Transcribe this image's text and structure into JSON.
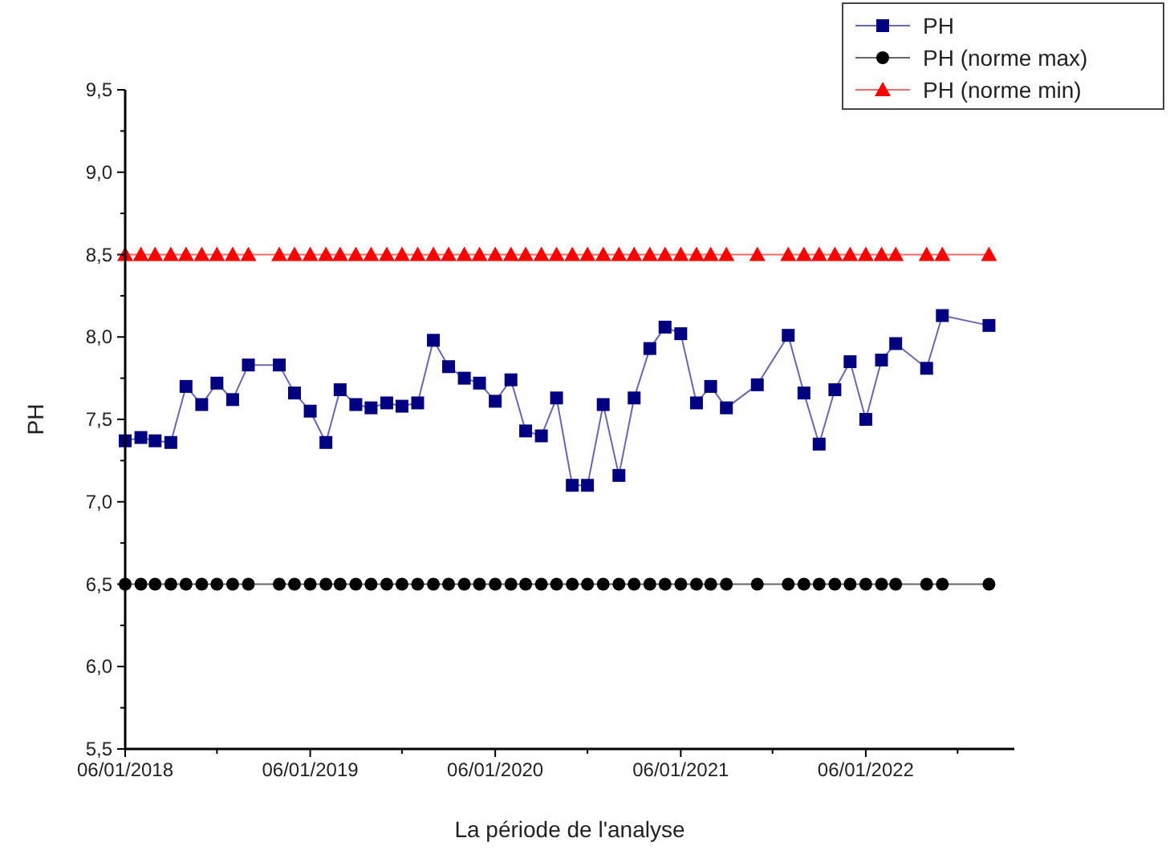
{
  "chart_data": {
    "type": "line",
    "xlabel": "La période de l'analyse",
    "ylabel": "PH",
    "x": [
      "2018-01-06",
      "2018-02-06",
      "2018-03-06",
      "2018-04-06",
      "2018-05-06",
      "2018-06-06",
      "2018-07-06",
      "2018-08-06",
      "2018-09-06",
      "2018-11-06",
      "2018-12-06",
      "2019-01-06",
      "2019-02-06",
      "2019-03-06",
      "2019-04-06",
      "2019-05-06",
      "2019-06-06",
      "2019-07-06",
      "2019-08-06",
      "2019-09-06",
      "2019-10-06",
      "2019-11-06",
      "2019-12-06",
      "2020-01-06",
      "2020-02-06",
      "2020-03-06",
      "2020-04-06",
      "2020-05-06",
      "2020-06-06",
      "2020-07-06",
      "2020-08-06",
      "2020-09-06",
      "2020-10-06",
      "2020-11-06",
      "2020-12-06",
      "2021-01-06",
      "2021-02-06",
      "2021-03-06",
      "2021-04-06",
      "2021-06-06",
      "2021-08-06",
      "2021-09-06",
      "2021-10-06",
      "2021-11-06",
      "2021-12-06",
      "2022-01-06",
      "2022-02-06",
      "2022-03-06",
      "2022-05-06",
      "2022-06-06",
      "2022-09-06"
    ],
    "series": [
      {
        "name": "PH",
        "color": "#000080",
        "marker": "square",
        "values": [
          7.37,
          7.39,
          7.37,
          7.36,
          7.7,
          7.59,
          7.72,
          7.62,
          7.83,
          7.83,
          7.66,
          7.55,
          7.36,
          7.68,
          7.59,
          7.57,
          7.6,
          7.58,
          7.6,
          7.98,
          7.82,
          7.75,
          7.72,
          7.61,
          7.74,
          7.43,
          7.4,
          7.63,
          7.1,
          7.1,
          7.59,
          7.16,
          7.63,
          7.93,
          8.06,
          8.02,
          7.6,
          7.7,
          7.57,
          7.71,
          8.01,
          7.66,
          7.35,
          7.68,
          7.85,
          7.5,
          7.86,
          7.96,
          7.81,
          8.13,
          8.07
        ]
      },
      {
        "name": "PH (norme max)",
        "color": "#000000",
        "marker": "circle",
        "values": [
          6.5,
          6.5,
          6.5,
          6.5,
          6.5,
          6.5,
          6.5,
          6.5,
          6.5,
          6.5,
          6.5,
          6.5,
          6.5,
          6.5,
          6.5,
          6.5,
          6.5,
          6.5,
          6.5,
          6.5,
          6.5,
          6.5,
          6.5,
          6.5,
          6.5,
          6.5,
          6.5,
          6.5,
          6.5,
          6.5,
          6.5,
          6.5,
          6.5,
          6.5,
          6.5,
          6.5,
          6.5,
          6.5,
          6.5,
          6.5,
          6.5,
          6.5,
          6.5,
          6.5,
          6.5,
          6.5,
          6.5,
          6.5,
          6.5,
          6.5,
          6.5
        ]
      },
      {
        "name": "PH (norme min)",
        "color": "#ff0000",
        "marker": "triangle",
        "values": [
          8.5,
          8.5,
          8.5,
          8.5,
          8.5,
          8.5,
          8.5,
          8.5,
          8.5,
          8.5,
          8.5,
          8.5,
          8.5,
          8.5,
          8.5,
          8.5,
          8.5,
          8.5,
          8.5,
          8.5,
          8.5,
          8.5,
          8.5,
          8.5,
          8.5,
          8.5,
          8.5,
          8.5,
          8.5,
          8.5,
          8.5,
          8.5,
          8.5,
          8.5,
          8.5,
          8.5,
          8.5,
          8.5,
          8.5,
          8.5,
          8.5,
          8.5,
          8.5,
          8.5,
          8.5,
          8.5,
          8.5,
          8.5,
          8.5,
          8.5,
          8.5
        ]
      }
    ],
    "xlim": [
      "2018-01-06",
      "2022-10-26"
    ],
    "xticks": [
      {
        "value": "2018-01-06",
        "label": "06/01/2018"
      },
      {
        "value": "2018-07-06",
        "label": null
      },
      {
        "value": "2019-01-06",
        "label": "06/01/2019"
      },
      {
        "value": "2019-07-06",
        "label": null
      },
      {
        "value": "2020-01-06",
        "label": "06/01/2020"
      },
      {
        "value": "2020-07-06",
        "label": null
      },
      {
        "value": "2021-01-06",
        "label": "06/01/2021"
      },
      {
        "value": "2021-07-06",
        "label": null
      },
      {
        "value": "2022-01-06",
        "label": "06/01/2022"
      },
      {
        "value": "2022-07-06",
        "label": null
      }
    ],
    "ylim": [
      5.5,
      9.5
    ],
    "yticks": [
      {
        "value": 5.5,
        "label": "5,5"
      },
      {
        "value": 5.75,
        "label": null
      },
      {
        "value": 6,
        "label": "6,0"
      },
      {
        "value": 6.25,
        "label": null
      },
      {
        "value": 6.5,
        "label": "6,5"
      },
      {
        "value": 6.75,
        "label": null
      },
      {
        "value": 7,
        "label": "7,0"
      },
      {
        "value": 7.25,
        "label": null
      },
      {
        "value": 7.5,
        "label": "7,5"
      },
      {
        "value": 7.75,
        "label": null
      },
      {
        "value": 8,
        "label": "8,0"
      },
      {
        "value": 8.25,
        "label": null
      },
      {
        "value": 8.5,
        "label": "8,5"
      },
      {
        "value": 8.75,
        "label": null
      },
      {
        "value": 9,
        "label": "9,0"
      },
      {
        "value": 9.25,
        "label": null
      },
      {
        "value": 9.5,
        "label": "9,5"
      }
    ],
    "grid": false,
    "legend": "top right",
    "line_style": "solid"
  }
}
